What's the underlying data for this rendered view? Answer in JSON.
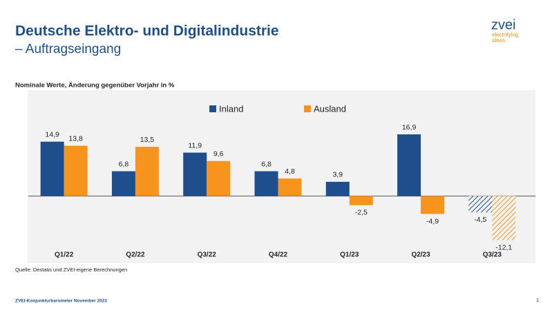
{
  "chart_data": {
    "type": "bar",
    "title": "Deutsche Elektro- und Digitalindustrie",
    "subtitle": "– Auftragseingang",
    "note": "Nominale Werte, Änderung gegenüber Vorjahr in %",
    "source": "Quelle: Destatis und ZVEI-eigene Berechnungen",
    "categories": [
      "Q1/22",
      "Q2/22",
      "Q3/22",
      "Q4/22",
      "Q1/23",
      "Q2/23",
      "Q3/23"
    ],
    "hatched": [
      false,
      false,
      false,
      false,
      false,
      false,
      true
    ],
    "series": [
      {
        "name": "Inland",
        "color": "#1f4e8c",
        "values": [
          14.9,
          6.8,
          11.9,
          6.8,
          3.9,
          16.9,
          -4.5
        ],
        "value_labels": [
          "14,9",
          "6,8",
          "11,9",
          "6,8",
          "3,9",
          "16,9",
          "-4,5"
        ]
      },
      {
        "name": "Ausland",
        "color": "#f7941d",
        "values": [
          13.8,
          13.5,
          9.6,
          4.8,
          -2.5,
          -4.9,
          -12.1
        ],
        "value_labels": [
          "13,8",
          "13,5",
          "9,6",
          "4,8",
          "-2,5",
          "-4,9",
          "-12,1"
        ]
      }
    ],
    "ylim": [
      -18.4,
      29
    ],
    "grid": false,
    "legend": "top"
  },
  "logo": {
    "name": "zvei",
    "tagline": [
      "electrifying",
      "ideas"
    ]
  },
  "footer": {
    "text": "ZVEI-Konjunkturbarometer November 2023",
    "page": 1
  }
}
